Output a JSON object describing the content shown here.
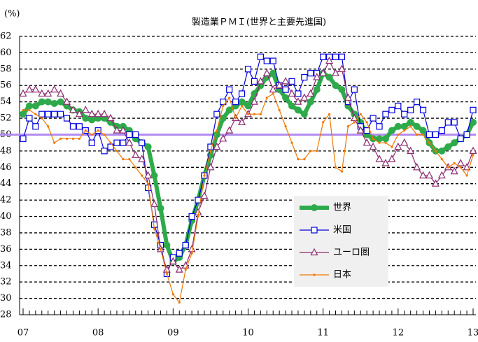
{
  "chart_data": {
    "type": "line",
    "title": "製造業ＰＭＩ(世界と主要先進国)",
    "y_label": "(%)",
    "categories": [
      "07",
      null,
      null,
      null,
      null,
      null,
      null,
      null,
      null,
      null,
      null,
      null,
      "08",
      null,
      null,
      null,
      null,
      null,
      null,
      null,
      null,
      null,
      null,
      null,
      "09",
      null,
      null,
      null,
      null,
      null,
      null,
      null,
      null,
      null,
      null,
      null,
      "10",
      null,
      null,
      null,
      null,
      null,
      null,
      null,
      null,
      null,
      null,
      null,
      "11",
      null,
      null,
      null,
      null,
      null,
      null,
      null,
      null,
      null,
      null,
      null,
      "12",
      null,
      null,
      null,
      null,
      null,
      null,
      null,
      null,
      null,
      null,
      null,
      "13"
    ],
    "ylim": [
      28,
      62
    ],
    "yticks": [
      28,
      30,
      32,
      34,
      36,
      38,
      40,
      42,
      44,
      46,
      48,
      50,
      52,
      54,
      56,
      58,
      60,
      62
    ],
    "grid": true,
    "reference_line": {
      "value": 50,
      "color": "#b38cf0"
    },
    "series": [
      {
        "name": "世界",
        "color": "#2eaa4a",
        "marker": "circle",
        "width": 6,
        "values": [
          52.5,
          53.5,
          53.5,
          54,
          54,
          53.8,
          54,
          53.5,
          53,
          52.8,
          52,
          51.8,
          52,
          52,
          51.5,
          51,
          51,
          50.5,
          49.5,
          49,
          48.5,
          45,
          41,
          36.5,
          34.5,
          35,
          36.5,
          39.5,
          42,
          45,
          47.5,
          50,
          52,
          53,
          53.5,
          54,
          53.5,
          55,
          56,
          57,
          57.5,
          55.5,
          54.5,
          53.5,
          53,
          52.5,
          54,
          55.5,
          57.5,
          57,
          56,
          55.5,
          53.5,
          52.5,
          51.5,
          50,
          49.5,
          49.5,
          49.5,
          50.5,
          51,
          51,
          51.5,
          51,
          50.5,
          49,
          48,
          48,
          48.5,
          49,
          49.5,
          50,
          51.5
        ]
      },
      {
        "name": "米国",
        "color": "#0000dd",
        "marker": "square",
        "width": 1.2,
        "values": [
          49.5,
          52,
          51,
          52.5,
          52.5,
          52.5,
          52.5,
          52,
          51,
          51,
          50.5,
          49,
          50.5,
          48,
          48.5,
          49,
          49,
          50,
          50,
          49,
          43.5,
          39,
          36.5,
          33,
          35,
          35.5,
          36.5,
          40,
          42,
          45,
          48.5,
          52.5,
          54,
          55.5,
          54,
          55,
          58,
          56.5,
          59.5,
          59,
          59,
          56,
          55.5,
          56.5,
          55,
          57,
          57.5,
          57.5,
          59.5,
          59.5,
          59.5,
          59.5,
          54,
          55.5,
          51,
          50.5,
          52,
          51,
          52.5,
          53,
          53.5,
          52.5,
          53,
          54,
          53,
          50,
          50,
          50.5,
          51.5,
          51.5,
          49.5,
          50,
          53
        ]
      },
      {
        "name": "ユーロ圏",
        "color": "#8b2a6e",
        "marker": "triangle",
        "width": 1.2,
        "values": [
          55,
          55.5,
          55.5,
          55,
          55,
          55.5,
          55,
          54,
          53,
          52.5,
          53,
          52.5,
          52.5,
          52.5,
          52,
          50.5,
          50.5,
          49,
          47.5,
          47,
          45,
          41.5,
          36,
          33.5,
          34.5,
          33.5,
          34,
          36,
          40.5,
          42.5,
          46,
          48.5,
          49.5,
          50.5,
          52,
          51.5,
          52.5,
          54,
          56.5,
          57.5,
          55.5,
          56,
          56.5,
          55,
          54,
          54.5,
          55,
          57,
          57.5,
          59,
          57.5,
          58,
          54.5,
          52,
          50.5,
          49,
          48.5,
          47,
          46.5,
          47,
          48.5,
          49,
          48,
          46,
          45,
          45,
          44,
          45,
          46,
          45.5,
          46.5,
          46,
          48
        ]
      },
      {
        "name": "日本",
        "color": "#f07800",
        "marker": "dot",
        "width": 1.2,
        "values": [
          53,
          53,
          52.5,
          52,
          51,
          49,
          49.5,
          49.5,
          49.5,
          49.5,
          50.5,
          50,
          50.5,
          50,
          49,
          48,
          47,
          47,
          46,
          45,
          44,
          38.5,
          36,
          33,
          30.5,
          29.5,
          33.5,
          35.5,
          40,
          45,
          48,
          50.5,
          53.5,
          54.5,
          52,
          53.5,
          52.5,
          52.5,
          52.5,
          54.5,
          55,
          53,
          51,
          49,
          47,
          47,
          48,
          48,
          51.5,
          52.5,
          46,
          45.5,
          51,
          51.5,
          52.5,
          51.5,
          49.5,
          49,
          49,
          48.5,
          50,
          50.5,
          51,
          50,
          50,
          49,
          48,
          47,
          46,
          46.5,
          46,
          45,
          47.5
        ]
      }
    ]
  }
}
